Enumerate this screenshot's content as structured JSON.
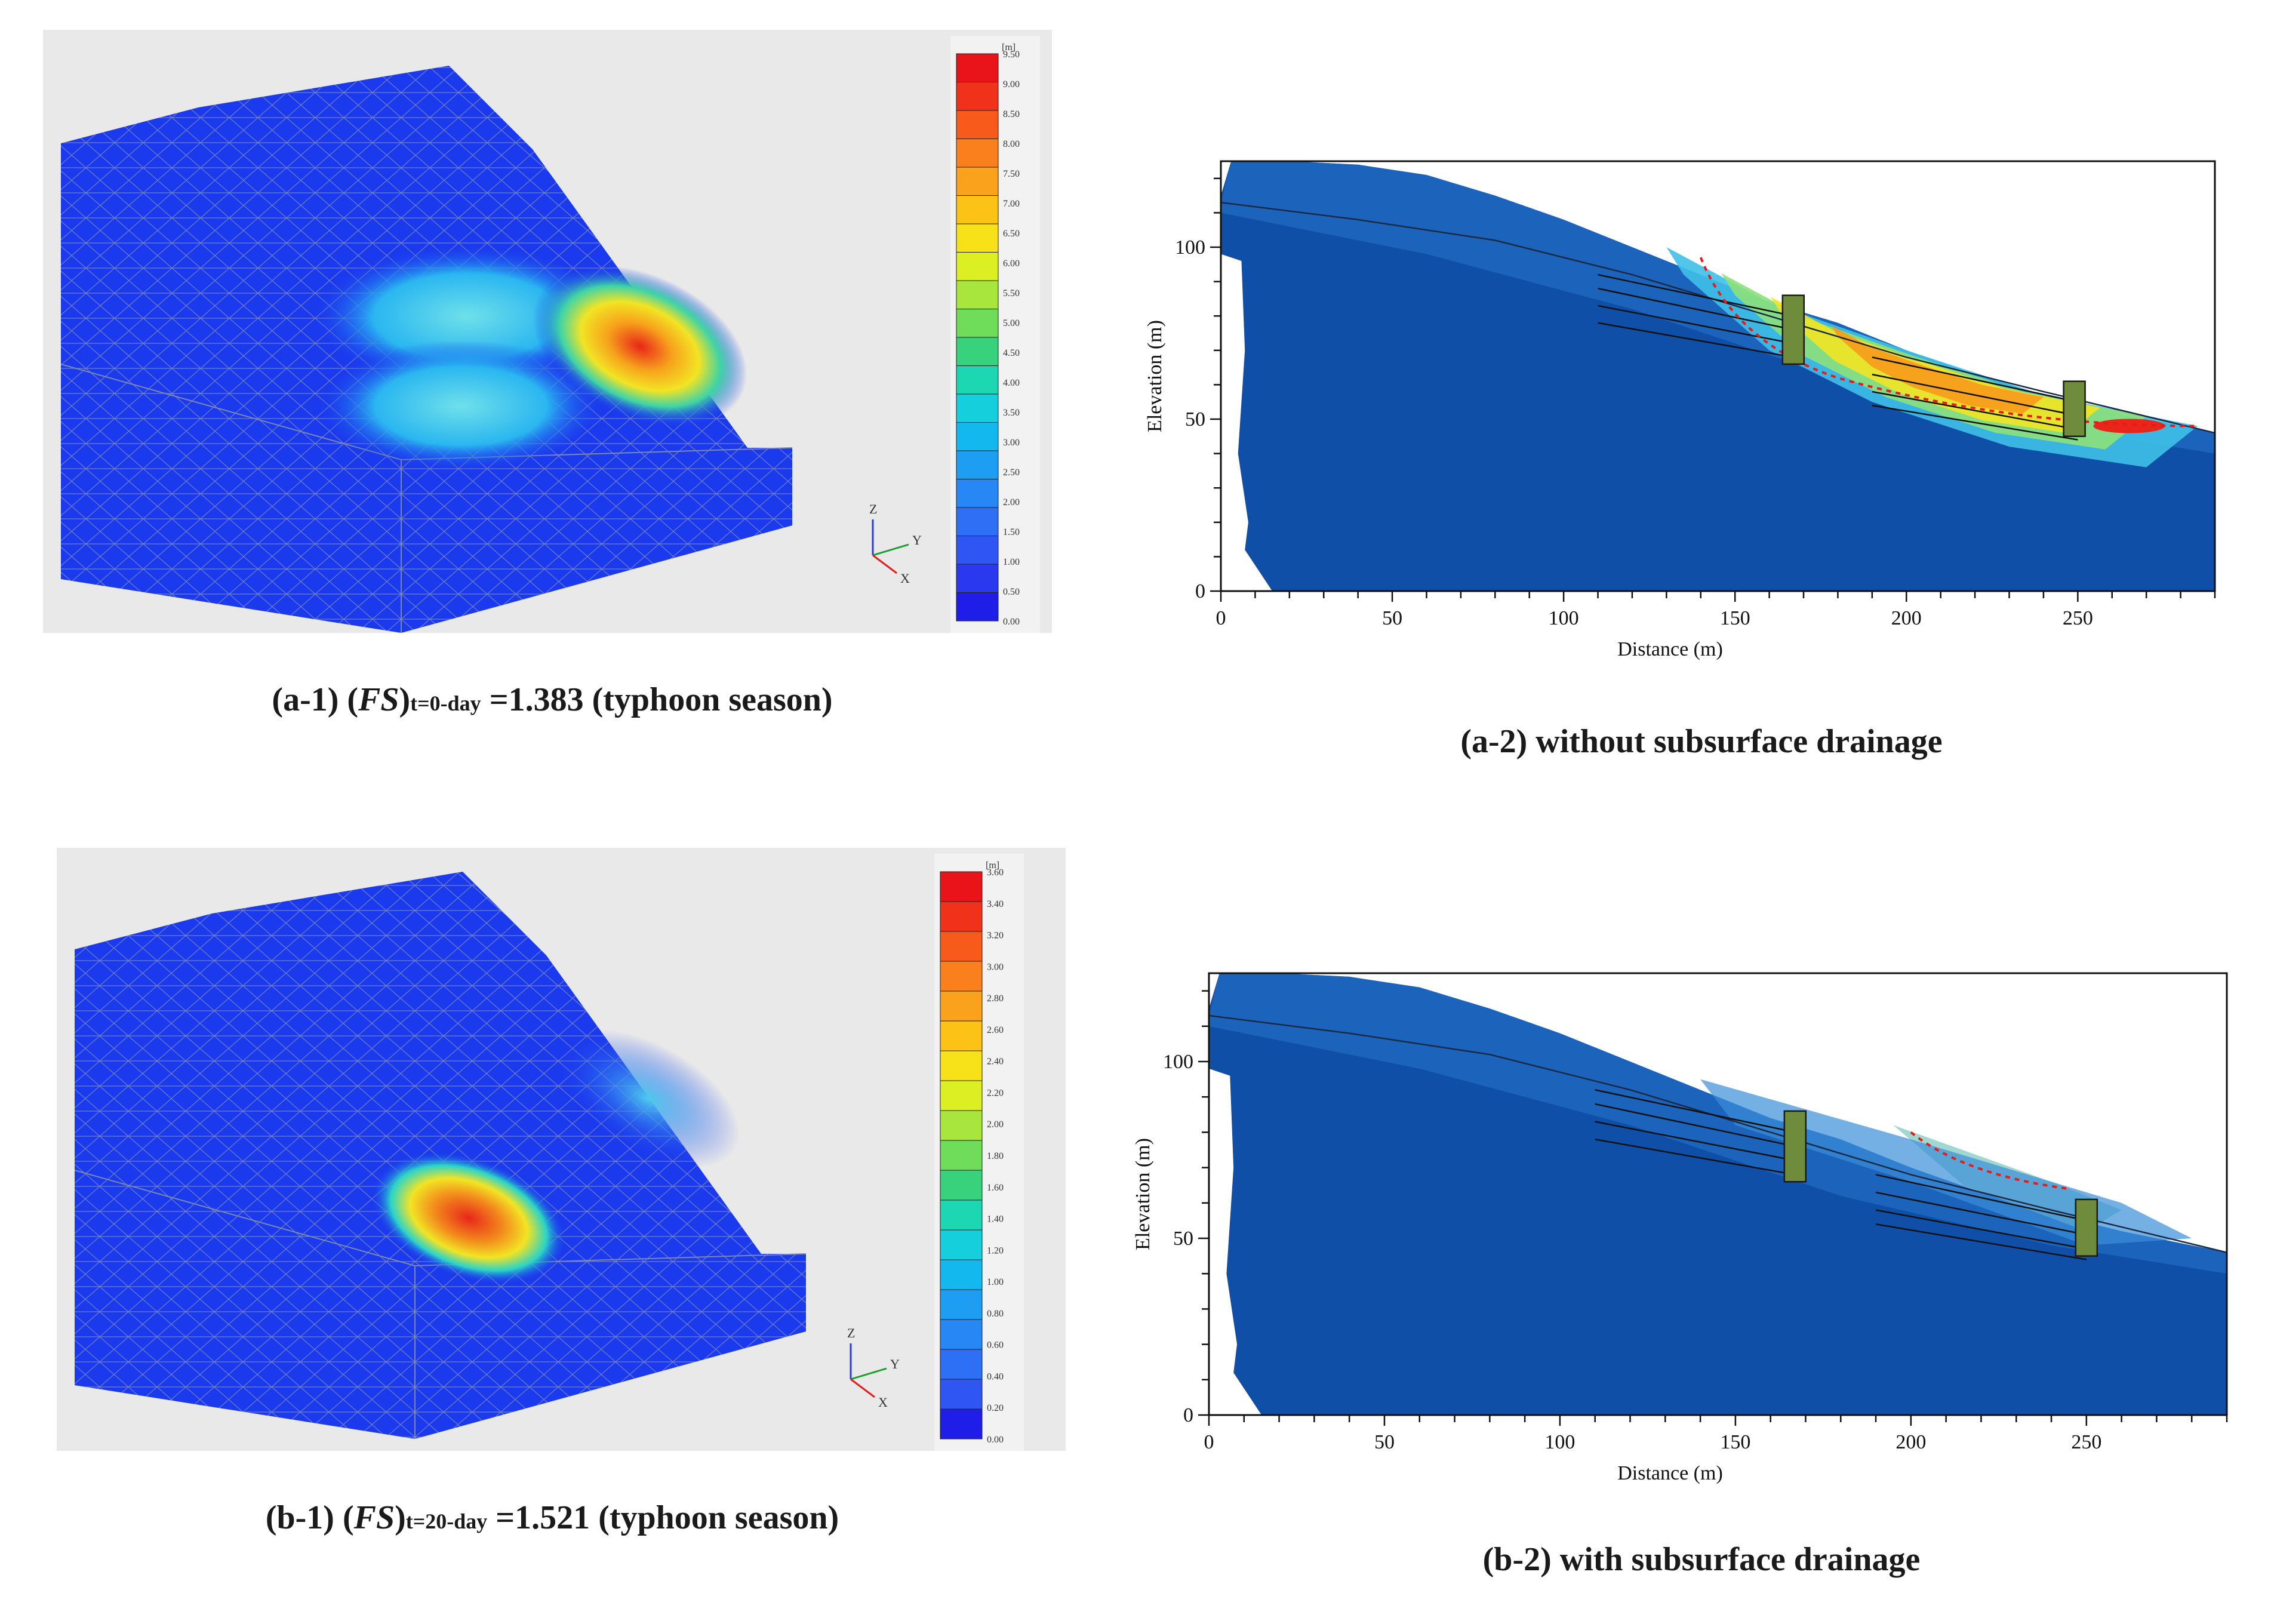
{
  "panels": {
    "a1": {
      "label": "a-1",
      "fs_symbol": "FS",
      "time_sub": "t=0-day",
      "fs_value": "=1.383",
      "season": "(typhoon season)",
      "legend_unit": "[m]",
      "legend_ticks": [
        "9.50",
        "9.00",
        "8.50",
        "8.00",
        "7.50",
        "7.00",
        "6.50",
        "6.00",
        "5.50",
        "5.00",
        "4.50",
        "4.00",
        "3.50",
        "3.00",
        "2.50",
        "2.00",
        "1.50",
        "1.00",
        "0.50",
        "0.00"
      ],
      "legend_colors": [
        "#e8141a",
        "#f0321a",
        "#f85a1c",
        "#fa801e",
        "#fba21c",
        "#fcc215",
        "#f7e21a",
        "#dcef23",
        "#a9e63d",
        "#6fdc5a",
        "#38d27c",
        "#1dd6b2",
        "#15cfdc",
        "#12b8ee",
        "#1e9ef3",
        "#2787f5",
        "#2d6ff5",
        "#2f55f2",
        "#2a38ee",
        "#1e1ee8"
      ],
      "axis_labels": {
        "z": "Z",
        "y": "Y",
        "x": "X"
      }
    },
    "a2": {
      "label": "a-2",
      "caption_text": "without subsurface drainage",
      "chart_data": {
        "type": "contour",
        "xlabel": "Distance (m)",
        "ylabel": "Elevation (m)",
        "xlim": [
          0,
          290
        ],
        "ylim": [
          0,
          125
        ],
        "x_ticks": [
          0,
          50,
          100,
          150,
          200,
          250
        ],
        "y_ticks": [
          0,
          50,
          100
        ],
        "slip_surface": "red dashed",
        "drain_wells_at_x": [
          167,
          249
        ],
        "hotspot": "near x 170-290 along slope surface"
      }
    },
    "b1": {
      "label": "b-1",
      "fs_symbol": "FS",
      "time_sub": "t=20-day",
      "fs_value": "=1.521",
      "season": "(typhoon season)",
      "legend_unit": "[m]",
      "legend_ticks": [
        "3.60",
        "3.40",
        "3.20",
        "3.00",
        "2.80",
        "2.60",
        "2.40",
        "2.20",
        "2.00",
        "1.80",
        "1.60",
        "1.40",
        "1.20",
        "1.00",
        "0.80",
        "0.60",
        "0.40",
        "0.20",
        "0.00"
      ],
      "legend_colors": [
        "#e8141a",
        "#f0321a",
        "#f85a1c",
        "#fa801e",
        "#fba21c",
        "#fcc215",
        "#f7e21a",
        "#dcef23",
        "#a9e63d",
        "#6fdc5a",
        "#38d27c",
        "#1dd6b2",
        "#15cfdc",
        "#12b8ee",
        "#1e9ef3",
        "#2787f5",
        "#2d6ff5",
        "#2f55f2",
        "#1e1ee8"
      ],
      "axis_labels": {
        "z": "Z",
        "y": "Y",
        "x": "X"
      }
    },
    "b2": {
      "label": "b-2",
      "caption_text": "with subsurface drainage",
      "chart_data": {
        "type": "contour",
        "xlabel": "Distance (m)",
        "ylabel": "Elevation (m)",
        "xlim": [
          0,
          290
        ],
        "ylim": [
          0,
          125
        ],
        "x_ticks": [
          0,
          50,
          100,
          150,
          200,
          250
        ],
        "y_ticks": [
          0,
          50,
          100
        ],
        "slip_surface": "red dotted",
        "drain_wells_at_x": [
          167,
          250
        ]
      }
    }
  }
}
